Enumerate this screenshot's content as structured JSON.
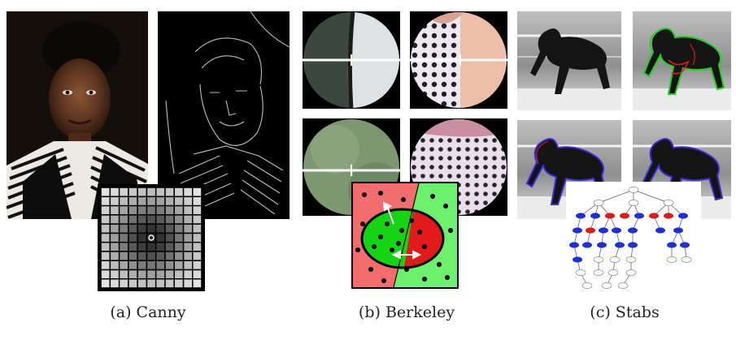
{
  "captions": {
    "a": "(a) Canny",
    "b": "(b) Berkeley",
    "c": "(c) Stabs"
  },
  "colors": {
    "background": "#ffffff",
    "region_red": "#f26d6d",
    "region_green": "#6df06d",
    "ellipse_red": "#e21a1a",
    "ellipse_green": "#14d414",
    "node_blue": "#1e2fd6",
    "node_red": "#d81b1b",
    "contour_green": "#1fd11f",
    "contour_blue": "#3a2ad8"
  },
  "figure": {
    "panels": [
      "canny",
      "berkeley",
      "stabs"
    ]
  }
}
